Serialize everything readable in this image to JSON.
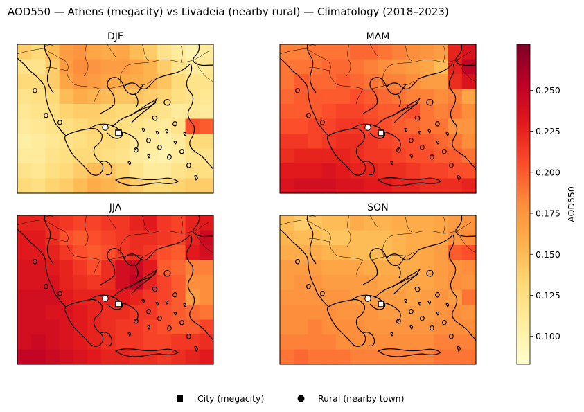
{
  "figure": {
    "title": "AOD550 — Athens (megacity) vs Livadeia (nearby rural) — Climatology (2018–2023)"
  },
  "colors": {
    "colormap": [
      "#ffffcc",
      "#ffeda0",
      "#fed976",
      "#feb24c",
      "#fd8d3c",
      "#fc4e2a",
      "#e31a1c",
      "#bd0026",
      "#800026"
    ],
    "coastline": "#000000",
    "border": "#000000",
    "marker_fill": "#ffffff",
    "marker_edge": "#000000"
  },
  "colorbar": {
    "label": "AOD550",
    "vmin": 0.083,
    "vmax": 0.278,
    "ticks": [
      "0.100",
      "0.125",
      "0.150",
      "0.175",
      "0.200",
      "0.225",
      "0.250"
    ]
  },
  "legend": {
    "placement": "bottom-center",
    "city": {
      "label": "City (megacity)",
      "marker": "square"
    },
    "rural": {
      "label": "Rural (nearby town)",
      "marker": "circle"
    }
  },
  "maps": [
    {
      "id": "djf",
      "title": "DJF",
      "grid": [
        [
          0.14,
          0.13,
          0.15,
          0.17,
          0.175,
          0.165,
          0.16,
          0.165,
          0.15,
          0.14,
          0.12,
          0.11,
          0.1,
          0.11
        ],
        [
          0.12,
          0.12,
          0.14,
          0.17,
          0.18,
          0.175,
          0.17,
          0.17,
          0.165,
          0.155,
          0.14,
          0.12,
          0.11,
          0.115
        ],
        [
          0.13,
          0.13,
          0.14,
          0.165,
          0.175,
          0.17,
          0.165,
          0.16,
          0.16,
          0.155,
          0.145,
          0.13,
          0.12,
          0.12
        ],
        [
          0.12,
          0.125,
          0.13,
          0.15,
          0.16,
          0.155,
          0.15,
          0.145,
          0.145,
          0.14,
          0.135,
          0.125,
          0.12,
          0.115
        ],
        [
          0.115,
          0.12,
          0.125,
          0.135,
          0.14,
          0.14,
          0.135,
          0.13,
          0.13,
          0.125,
          0.12,
          0.11,
          0.115,
          0.11
        ],
        [
          0.11,
          0.115,
          0.12,
          0.125,
          0.13,
          0.135,
          0.13,
          0.125,
          0.12,
          0.115,
          0.11,
          0.12,
          0.205,
          0.2
        ],
        [
          0.105,
          0.11,
          0.115,
          0.12,
          0.125,
          0.13,
          0.13,
          0.125,
          0.115,
          0.11,
          0.105,
          0.11,
          0.13,
          0.13
        ],
        [
          0.11,
          0.11,
          0.12,
          0.125,
          0.13,
          0.13,
          0.125,
          0.12,
          0.11,
          0.105,
          0.1,
          0.11,
          0.12,
          0.12
        ],
        [
          0.12,
          0.115,
          0.125,
          0.13,
          0.14,
          0.15,
          0.145,
          0.135,
          0.12,
          0.11,
          0.11,
          0.12,
          0.125,
          0.125
        ],
        [
          0.13,
          0.125,
          0.135,
          0.14,
          0.15,
          0.16,
          0.155,
          0.15,
          0.14,
          0.13,
          0.13,
          0.135,
          0.14,
          0.14
        ]
      ]
    },
    {
      "id": "mam",
      "title": "MAM",
      "grid": [
        [
          0.185,
          0.185,
          0.19,
          0.19,
          0.19,
          0.195,
          0.195,
          0.19,
          0.185,
          0.18,
          0.175,
          0.17,
          0.225,
          0.235
        ],
        [
          0.19,
          0.19,
          0.19,
          0.195,
          0.195,
          0.19,
          0.185,
          0.18,
          0.175,
          0.17,
          0.165,
          0.15,
          0.225,
          0.25
        ],
        [
          0.19,
          0.2,
          0.195,
          0.195,
          0.2,
          0.195,
          0.19,
          0.185,
          0.185,
          0.18,
          0.17,
          0.17,
          0.22,
          0.235
        ],
        [
          0.195,
          0.2,
          0.2,
          0.2,
          0.2,
          0.205,
          0.2,
          0.195,
          0.19,
          0.185,
          0.185,
          0.18,
          0.185,
          0.165
        ],
        [
          0.2,
          0.2,
          0.2,
          0.205,
          0.21,
          0.21,
          0.205,
          0.2,
          0.2,
          0.205,
          0.19,
          0.185,
          0.19,
          0.18
        ],
        [
          0.205,
          0.205,
          0.21,
          0.21,
          0.215,
          0.215,
          0.21,
          0.205,
          0.2,
          0.195,
          0.19,
          0.19,
          0.175,
          0.175
        ],
        [
          0.215,
          0.215,
          0.21,
          0.215,
          0.22,
          0.22,
          0.215,
          0.21,
          0.205,
          0.205,
          0.2,
          0.195,
          0.19,
          0.18
        ],
        [
          0.22,
          0.225,
          0.225,
          0.225,
          0.225,
          0.22,
          0.215,
          0.215,
          0.21,
          0.205,
          0.205,
          0.2,
          0.2,
          0.19
        ],
        [
          0.23,
          0.23,
          0.23,
          0.235,
          0.23,
          0.225,
          0.225,
          0.22,
          0.22,
          0.215,
          0.21,
          0.21,
          0.205,
          0.205
        ],
        [
          0.235,
          0.24,
          0.24,
          0.24,
          0.235,
          0.235,
          0.23,
          0.23,
          0.225,
          0.225,
          0.22,
          0.22,
          0.22,
          0.225
        ]
      ]
    },
    {
      "id": "jja",
      "title": "JJA",
      "grid": [
        [
          0.225,
          0.225,
          0.22,
          0.215,
          0.21,
          0.21,
          0.215,
          0.215,
          0.225,
          0.23,
          0.215,
          0.21,
          0.225,
          0.23
        ],
        [
          0.23,
          0.23,
          0.22,
          0.205,
          0.2,
          0.205,
          0.21,
          0.215,
          0.22,
          0.22,
          0.215,
          0.21,
          0.225,
          0.245
        ],
        [
          0.23,
          0.23,
          0.225,
          0.215,
          0.205,
          0.2,
          0.205,
          0.215,
          0.22,
          0.215,
          0.205,
          0.2,
          0.23,
          0.24
        ],
        [
          0.235,
          0.235,
          0.23,
          0.225,
          0.215,
          0.205,
          0.22,
          0.24,
          0.245,
          0.23,
          0.2,
          0.195,
          0.185,
          0.185
        ],
        [
          0.235,
          0.235,
          0.235,
          0.225,
          0.22,
          0.215,
          0.22,
          0.24,
          0.25,
          0.225,
          0.21,
          0.2,
          0.18,
          0.18
        ],
        [
          0.24,
          0.24,
          0.24,
          0.23,
          0.225,
          0.225,
          0.225,
          0.23,
          0.225,
          0.215,
          0.21,
          0.2,
          0.17,
          0.18
        ],
        [
          0.24,
          0.24,
          0.235,
          0.235,
          0.23,
          0.225,
          0.22,
          0.22,
          0.215,
          0.215,
          0.205,
          0.2,
          0.195,
          0.19
        ],
        [
          0.24,
          0.24,
          0.24,
          0.235,
          0.23,
          0.225,
          0.22,
          0.215,
          0.215,
          0.21,
          0.205,
          0.2,
          0.2,
          0.21
        ],
        [
          0.24,
          0.245,
          0.24,
          0.235,
          0.23,
          0.225,
          0.22,
          0.215,
          0.215,
          0.21,
          0.21,
          0.215,
          0.215,
          0.22
        ],
        [
          0.25,
          0.25,
          0.245,
          0.24,
          0.235,
          0.23,
          0.225,
          0.225,
          0.22,
          0.22,
          0.215,
          0.22,
          0.225,
          0.23
        ]
      ]
    },
    {
      "id": "son",
      "title": "SON",
      "grid": [
        [
          0.15,
          0.14,
          0.145,
          0.15,
          0.15,
          0.16,
          0.155,
          0.155,
          0.16,
          0.16,
          0.16,
          0.165,
          0.17,
          0.175
        ],
        [
          0.155,
          0.15,
          0.15,
          0.145,
          0.145,
          0.15,
          0.15,
          0.15,
          0.155,
          0.16,
          0.16,
          0.165,
          0.175,
          0.18
        ],
        [
          0.16,
          0.16,
          0.16,
          0.155,
          0.155,
          0.15,
          0.15,
          0.15,
          0.155,
          0.16,
          0.165,
          0.17,
          0.2,
          0.205
        ],
        [
          0.17,
          0.17,
          0.17,
          0.165,
          0.165,
          0.165,
          0.16,
          0.16,
          0.16,
          0.16,
          0.165,
          0.17,
          0.175,
          0.18
        ],
        [
          0.17,
          0.175,
          0.175,
          0.17,
          0.17,
          0.17,
          0.17,
          0.165,
          0.165,
          0.165,
          0.165,
          0.17,
          0.18,
          0.175
        ],
        [
          0.175,
          0.175,
          0.175,
          0.175,
          0.175,
          0.17,
          0.17,
          0.17,
          0.17,
          0.165,
          0.17,
          0.175,
          0.17,
          0.19
        ],
        [
          0.18,
          0.18,
          0.18,
          0.18,
          0.175,
          0.175,
          0.175,
          0.17,
          0.17,
          0.17,
          0.17,
          0.175,
          0.18,
          0.175
        ],
        [
          0.18,
          0.18,
          0.185,
          0.18,
          0.18,
          0.18,
          0.175,
          0.175,
          0.175,
          0.175,
          0.175,
          0.18,
          0.18,
          0.18
        ],
        [
          0.185,
          0.185,
          0.185,
          0.185,
          0.18,
          0.18,
          0.18,
          0.18,
          0.18,
          0.18,
          0.18,
          0.185,
          0.185,
          0.185
        ],
        [
          0.19,
          0.195,
          0.19,
          0.19,
          0.19,
          0.185,
          0.185,
          0.185,
          0.185,
          0.185,
          0.185,
          0.19,
          0.19,
          0.19
        ]
      ]
    }
  ]
}
